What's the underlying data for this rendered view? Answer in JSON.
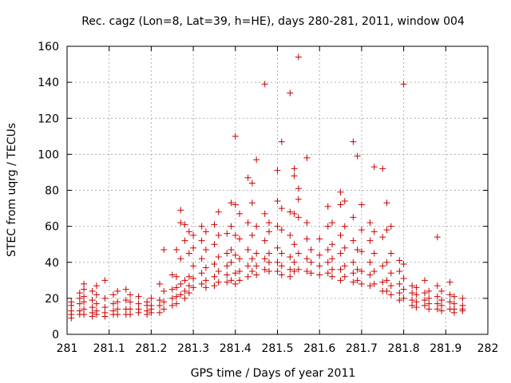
{
  "chart_data": {
    "type": "scatter",
    "title": "Rec. cagz (Lon=8, Lat=39, h=HE), days 280-281, 2011, window 004",
    "xlabel": "GPS time / Days of year 2011",
    "ylabel": "STEC from uqrg / TECUs",
    "xlim": [
      281,
      282
    ],
    "ylim": [
      0,
      160
    ],
    "x_ticks": [
      281,
      281.1,
      281.2,
      281.3,
      281.4,
      281.5,
      281.6,
      281.7,
      281.8,
      281.9,
      282
    ],
    "x_tick_labels": [
      "281",
      "281.1",
      "281.2",
      "281.3",
      "281.4",
      "281.5",
      "281.6",
      "281.7",
      "281.8",
      "281.9",
      "282"
    ],
    "y_ticks": [
      0,
      20,
      40,
      60,
      80,
      100,
      120,
      140,
      160
    ],
    "y_tick_labels": [
      "0",
      "20",
      "40",
      "60",
      "80",
      "100",
      "120",
      "140",
      "160"
    ],
    "grid": true,
    "marker": "+",
    "color": "#cc0000",
    "series": [
      {
        "name": "STEC",
        "points": [
          [
            281.01,
            18
          ],
          [
            281.01,
            16
          ],
          [
            281.01,
            13
          ],
          [
            281.01,
            11
          ],
          [
            281.01,
            9
          ],
          [
            281.03,
            23
          ],
          [
            281.03,
            20
          ],
          [
            281.03,
            17
          ],
          [
            281.03,
            13
          ],
          [
            281.03,
            11
          ],
          [
            281.04,
            28
          ],
          [
            281.04,
            25
          ],
          [
            281.04,
            21
          ],
          [
            281.04,
            18
          ],
          [
            281.04,
            14
          ],
          [
            281.04,
            11
          ],
          [
            281.06,
            24
          ],
          [
            281.06,
            19
          ],
          [
            281.06,
            15
          ],
          [
            281.06,
            12
          ],
          [
            281.06,
            10
          ],
          [
            281.07,
            27
          ],
          [
            281.07,
            22
          ],
          [
            281.07,
            17
          ],
          [
            281.07,
            13
          ],
          [
            281.07,
            11
          ],
          [
            281.09,
            30
          ],
          [
            281.09,
            20
          ],
          [
            281.09,
            15
          ],
          [
            281.09,
            12
          ],
          [
            281.09,
            10
          ],
          [
            281.11,
            22
          ],
          [
            281.11,
            17
          ],
          [
            281.11,
            13
          ],
          [
            281.11,
            11
          ],
          [
            281.12,
            24
          ],
          [
            281.12,
            18
          ],
          [
            281.12,
            14
          ],
          [
            281.12,
            11
          ],
          [
            281.14,
            25
          ],
          [
            281.14,
            19
          ],
          [
            281.14,
            14
          ],
          [
            281.14,
            11
          ],
          [
            281.15,
            22
          ],
          [
            281.15,
            18
          ],
          [
            281.15,
            14
          ],
          [
            281.15,
            11
          ],
          [
            281.17,
            21
          ],
          [
            281.17,
            17
          ],
          [
            281.17,
            14
          ],
          [
            281.17,
            12
          ],
          [
            281.19,
            18
          ],
          [
            281.19,
            16
          ],
          [
            281.19,
            13
          ],
          [
            281.19,
            11
          ],
          [
            281.2,
            20
          ],
          [
            281.2,
            16
          ],
          [
            281.2,
            14
          ],
          [
            281.2,
            12
          ],
          [
            281.22,
            28
          ],
          [
            281.22,
            19
          ],
          [
            281.22,
            16
          ],
          [
            281.22,
            12
          ],
          [
            281.23,
            47
          ],
          [
            281.23,
            24
          ],
          [
            281.23,
            18
          ],
          [
            281.23,
            14
          ],
          [
            281.25,
            33
          ],
          [
            281.25,
            25
          ],
          [
            281.25,
            20
          ],
          [
            281.25,
            16
          ],
          [
            281.26,
            47
          ],
          [
            281.26,
            32
          ],
          [
            281.26,
            26
          ],
          [
            281.26,
            21
          ],
          [
            281.26,
            17
          ],
          [
            281.27,
            69
          ],
          [
            281.27,
            62
          ],
          [
            281.27,
            42
          ],
          [
            281.27,
            28
          ],
          [
            281.27,
            22
          ],
          [
            281.28,
            61
          ],
          [
            281.28,
            52
          ],
          [
            281.28,
            30
          ],
          [
            281.28,
            24
          ],
          [
            281.28,
            20
          ],
          [
            281.29,
            57
          ],
          [
            281.29,
            45
          ],
          [
            281.29,
            32
          ],
          [
            281.29,
            27
          ],
          [
            281.29,
            23
          ],
          [
            281.3,
            55
          ],
          [
            281.3,
            48
          ],
          [
            281.3,
            38
          ],
          [
            281.3,
            31
          ],
          [
            281.3,
            26
          ],
          [
            281.32,
            60
          ],
          [
            281.32,
            52
          ],
          [
            281.32,
            42
          ],
          [
            281.32,
            34
          ],
          [
            281.32,
            28
          ],
          [
            281.33,
            57
          ],
          [
            281.33,
            47
          ],
          [
            281.33,
            37
          ],
          [
            281.33,
            30
          ],
          [
            281.33,
            26
          ],
          [
            281.35,
            61
          ],
          [
            281.35,
            50
          ],
          [
            281.35,
            39
          ],
          [
            281.35,
            32
          ],
          [
            281.35,
            27
          ],
          [
            281.36,
            68
          ],
          [
            281.36,
            55
          ],
          [
            281.36,
            43
          ],
          [
            281.36,
            35
          ],
          [
            281.36,
            29
          ],
          [
            281.38,
            56
          ],
          [
            281.38,
            45
          ],
          [
            281.38,
            38
          ],
          [
            281.38,
            33
          ],
          [
            281.38,
            29
          ],
          [
            281.39,
            73
          ],
          [
            281.39,
            60
          ],
          [
            281.39,
            47
          ],
          [
            281.39,
            40
          ],
          [
            281.39,
            30
          ],
          [
            281.4,
            110
          ],
          [
            281.4,
            72
          ],
          [
            281.4,
            55
          ],
          [
            281.4,
            44
          ],
          [
            281.4,
            34
          ],
          [
            281.4,
            28
          ],
          [
            281.41,
            67
          ],
          [
            281.41,
            53
          ],
          [
            281.41,
            42
          ],
          [
            281.41,
            35
          ],
          [
            281.41,
            30
          ],
          [
            281.43,
            87
          ],
          [
            281.43,
            62
          ],
          [
            281.43,
            47
          ],
          [
            281.43,
            38
          ],
          [
            281.43,
            32
          ],
          [
            281.44,
            84
          ],
          [
            281.44,
            73
          ],
          [
            281.44,
            55
          ],
          [
            281.44,
            42
          ],
          [
            281.44,
            35
          ],
          [
            281.45,
            97
          ],
          [
            281.45,
            60
          ],
          [
            281.45,
            45
          ],
          [
            281.45,
            38
          ],
          [
            281.45,
            33
          ],
          [
            281.47,
            139
          ],
          [
            281.47,
            67
          ],
          [
            281.47,
            52
          ],
          [
            281.47,
            42
          ],
          [
            281.47,
            36
          ],
          [
            281.48,
            62
          ],
          [
            281.48,
            57
          ],
          [
            281.48,
            45
          ],
          [
            281.48,
            40
          ],
          [
            281.48,
            35
          ],
          [
            281.5,
            91
          ],
          [
            281.5,
            74
          ],
          [
            281.5,
            60
          ],
          [
            281.5,
            48
          ],
          [
            281.5,
            40
          ],
          [
            281.5,
            35
          ],
          [
            281.51,
            107
          ],
          [
            281.51,
            70
          ],
          [
            281.51,
            58
          ],
          [
            281.51,
            45
          ],
          [
            281.51,
            38
          ],
          [
            281.51,
            33
          ],
          [
            281.53,
            134
          ],
          [
            281.53,
            68
          ],
          [
            281.53,
            55
          ],
          [
            281.53,
            43
          ],
          [
            281.53,
            36
          ],
          [
            281.53,
            32
          ],
          [
            281.54,
            92
          ],
          [
            281.54,
            88
          ],
          [
            281.54,
            67
          ],
          [
            281.54,
            50
          ],
          [
            281.54,
            40
          ],
          [
            281.54,
            35
          ],
          [
            281.55,
            154
          ],
          [
            281.55,
            81
          ],
          [
            281.55,
            75
          ],
          [
            281.55,
            65
          ],
          [
            281.55,
            45
          ],
          [
            281.55,
            36
          ],
          [
            281.57,
            98
          ],
          [
            281.57,
            62
          ],
          [
            281.57,
            53
          ],
          [
            281.57,
            42
          ],
          [
            281.57,
            35
          ],
          [
            281.58,
            47
          ],
          [
            281.58,
            40
          ],
          [
            281.58,
            34
          ],
          [
            281.6,
            53
          ],
          [
            281.6,
            44
          ],
          [
            281.6,
            38
          ],
          [
            281.6,
            33
          ],
          [
            281.62,
            71
          ],
          [
            281.62,
            60
          ],
          [
            281.62,
            47
          ],
          [
            281.62,
            40
          ],
          [
            281.62,
            34
          ],
          [
            281.63,
            62
          ],
          [
            281.63,
            50
          ],
          [
            281.63,
            42
          ],
          [
            281.63,
            36
          ],
          [
            281.63,
            32
          ],
          [
            281.65,
            79
          ],
          [
            281.65,
            72
          ],
          [
            281.65,
            55
          ],
          [
            281.65,
            45
          ],
          [
            281.65,
            36
          ],
          [
            281.65,
            30
          ],
          [
            281.66,
            74
          ],
          [
            281.66,
            60
          ],
          [
            281.66,
            48
          ],
          [
            281.66,
            38
          ],
          [
            281.66,
            32
          ],
          [
            281.68,
            107
          ],
          [
            281.68,
            65
          ],
          [
            281.68,
            52
          ],
          [
            281.68,
            40
          ],
          [
            281.68,
            34
          ],
          [
            281.68,
            29
          ],
          [
            281.69,
            99
          ],
          [
            281.69,
            47
          ],
          [
            281.69,
            36
          ],
          [
            281.69,
            30
          ],
          [
            281.7,
            72
          ],
          [
            281.7,
            58
          ],
          [
            281.7,
            46
          ],
          [
            281.7,
            35
          ],
          [
            281.7,
            28
          ],
          [
            281.72,
            62
          ],
          [
            281.72,
            52
          ],
          [
            281.72,
            40
          ],
          [
            281.72,
            33
          ],
          [
            281.72,
            27
          ],
          [
            281.73,
            93
          ],
          [
            281.73,
            57
          ],
          [
            281.73,
            45
          ],
          [
            281.73,
            35
          ],
          [
            281.73,
            28
          ],
          [
            281.75,
            92
          ],
          [
            281.75,
            54
          ],
          [
            281.75,
            38
          ],
          [
            281.75,
            29
          ],
          [
            281.75,
            24
          ],
          [
            281.76,
            73
          ],
          [
            281.76,
            58
          ],
          [
            281.76,
            40
          ],
          [
            281.76,
            30
          ],
          [
            281.76,
            24
          ],
          [
            281.77,
            60
          ],
          [
            281.77,
            45
          ],
          [
            281.77,
            34
          ],
          [
            281.77,
            27
          ],
          [
            281.77,
            22
          ],
          [
            281.79,
            41
          ],
          [
            281.79,
            35
          ],
          [
            281.79,
            28
          ],
          [
            281.79,
            23
          ],
          [
            281.79,
            19
          ],
          [
            281.8,
            139
          ],
          [
            281.8,
            39
          ],
          [
            281.8,
            31
          ],
          [
            281.8,
            25
          ],
          [
            281.8,
            20
          ],
          [
            281.82,
            27
          ],
          [
            281.82,
            23
          ],
          [
            281.82,
            19
          ],
          [
            281.82,
            16
          ],
          [
            281.83,
            26
          ],
          [
            281.83,
            22
          ],
          [
            281.83,
            18
          ],
          [
            281.83,
            15
          ],
          [
            281.85,
            30
          ],
          [
            281.85,
            23
          ],
          [
            281.85,
            19
          ],
          [
            281.85,
            16
          ],
          [
            281.86,
            24
          ],
          [
            281.86,
            20
          ],
          [
            281.86,
            17
          ],
          [
            281.86,
            14
          ],
          [
            281.88,
            54
          ],
          [
            281.88,
            27
          ],
          [
            281.88,
            21
          ],
          [
            281.88,
            17
          ],
          [
            281.88,
            14
          ],
          [
            281.89,
            24
          ],
          [
            281.89,
            19
          ],
          [
            281.89,
            16
          ],
          [
            281.89,
            13
          ],
          [
            281.91,
            29
          ],
          [
            281.91,
            22
          ],
          [
            281.91,
            18
          ],
          [
            281.91,
            14
          ],
          [
            281.92,
            21
          ],
          [
            281.92,
            17
          ],
          [
            281.92,
            14
          ],
          [
            281.92,
            12
          ],
          [
            281.94,
            20
          ],
          [
            281.94,
            16
          ],
          [
            281.94,
            14
          ],
          [
            281.94,
            13
          ]
        ]
      }
    ]
  }
}
